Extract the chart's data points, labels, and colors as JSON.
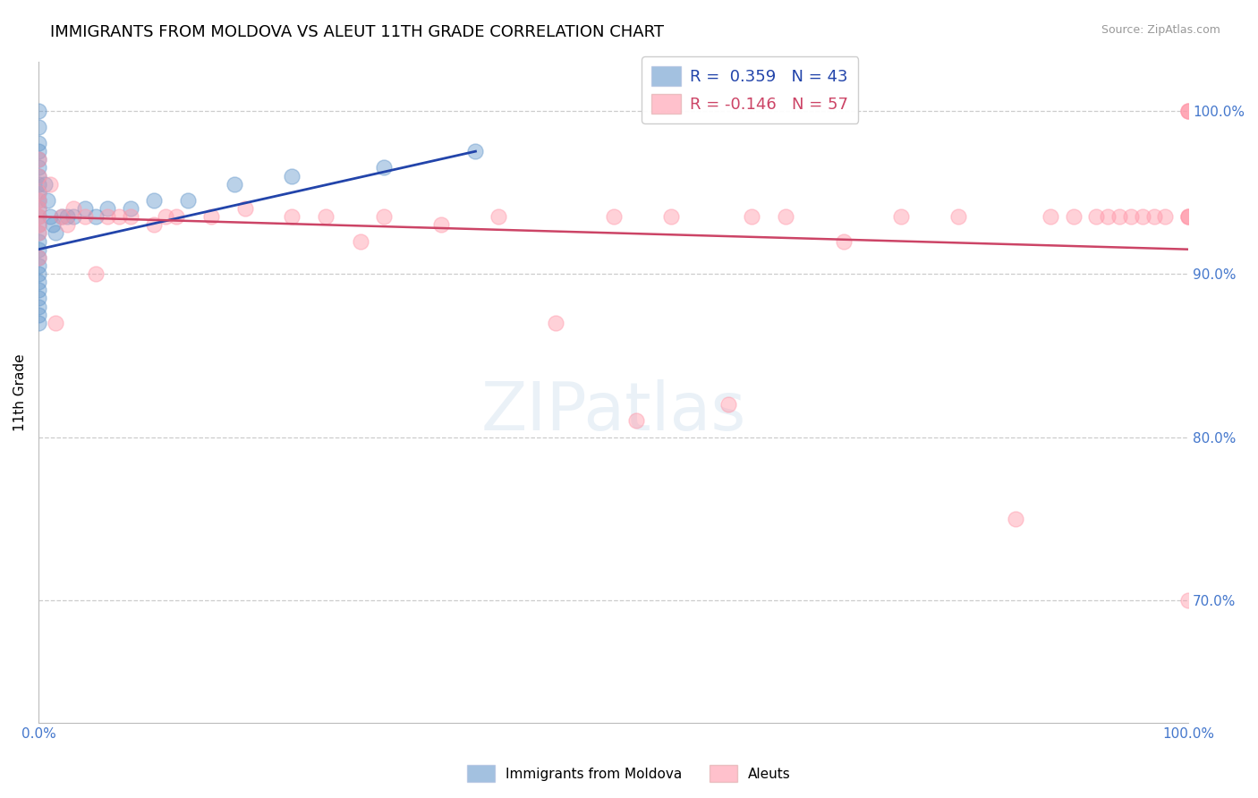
{
  "title": "IMMIGRANTS FROM MOLDOVA VS ALEUT 11TH GRADE CORRELATION CHART",
  "source_text": "Source: ZipAtlas.com",
  "ylabel": "11th Grade",
  "r_blue": 0.359,
  "n_blue": 43,
  "r_pink": -0.146,
  "n_pink": 57,
  "blue_color": "#6699CC",
  "pink_color": "#FF99AA",
  "blue_line_color": "#2244AA",
  "pink_line_color": "#CC4466",
  "legend_blue_label": "Immigrants from Moldova",
  "legend_pink_label": "Aleuts",
  "blue_scatter_x": [
    0.0,
    0.0,
    0.0,
    0.0,
    0.0,
    0.0,
    0.0,
    0.0,
    0.0,
    0.0,
    0.0,
    0.0,
    0.0,
    0.0,
    0.0,
    0.0,
    0.0,
    0.0,
    0.0,
    0.0,
    0.0,
    0.0,
    0.0,
    0.0,
    0.0,
    0.005,
    0.008,
    0.01,
    0.012,
    0.015,
    0.02,
    0.025,
    0.03,
    0.04,
    0.05,
    0.06,
    0.08,
    0.1,
    0.13,
    0.17,
    0.22,
    0.3,
    0.38
  ],
  "blue_scatter_y": [
    1.0,
    0.99,
    0.98,
    0.975,
    0.97,
    0.965,
    0.96,
    0.955,
    0.95,
    0.945,
    0.94,
    0.935,
    0.93,
    0.925,
    0.92,
    0.915,
    0.91,
    0.905,
    0.9,
    0.895,
    0.89,
    0.885,
    0.88,
    0.875,
    0.87,
    0.955,
    0.945,
    0.935,
    0.93,
    0.925,
    0.935,
    0.935,
    0.935,
    0.94,
    0.935,
    0.94,
    0.94,
    0.945,
    0.945,
    0.955,
    0.96,
    0.965,
    0.975
  ],
  "pink_scatter_x": [
    0.0,
    0.0,
    0.0,
    0.0,
    0.0,
    0.0,
    0.0,
    0.0,
    0.0,
    0.01,
    0.015,
    0.02,
    0.025,
    0.03,
    0.04,
    0.05,
    0.06,
    0.07,
    0.08,
    0.1,
    0.11,
    0.12,
    0.15,
    0.18,
    0.22,
    0.25,
    0.28,
    0.3,
    0.35,
    0.4,
    0.45,
    0.5,
    0.52,
    0.55,
    0.6,
    0.62,
    0.65,
    0.7,
    0.75,
    0.8,
    0.85,
    0.88,
    0.9,
    0.92,
    0.93,
    0.94,
    0.95,
    0.96,
    0.97,
    0.98,
    1.0,
    1.0,
    1.0,
    1.0,
    1.0,
    1.0,
    1.0
  ],
  "pink_scatter_y": [
    0.97,
    0.96,
    0.95,
    0.945,
    0.94,
    0.935,
    0.93,
    0.925,
    0.91,
    0.955,
    0.87,
    0.935,
    0.93,
    0.94,
    0.935,
    0.9,
    0.935,
    0.935,
    0.935,
    0.93,
    0.935,
    0.935,
    0.935,
    0.94,
    0.935,
    0.935,
    0.92,
    0.935,
    0.93,
    0.935,
    0.87,
    0.935,
    0.81,
    0.935,
    0.82,
    0.935,
    0.935,
    0.92,
    0.935,
    0.935,
    0.75,
    0.935,
    0.935,
    0.935,
    0.935,
    0.935,
    0.935,
    0.935,
    0.935,
    0.935,
    1.0,
    1.0,
    1.0,
    0.935,
    0.935,
    0.7,
    0.935
  ],
  "xlim": [
    0.0,
    1.0
  ],
  "ylim": [
    0.625,
    1.03
  ],
  "yticks": [
    0.7,
    0.8,
    0.9,
    1.0
  ],
  "ytick_labels": [
    "70.0%",
    "80.0%",
    "90.0%",
    "100.0%"
  ],
  "xticks": [
    0.0,
    1.0
  ],
  "xtick_labels": [
    "0.0%",
    "100.0%"
  ],
  "grid_color": "#CCCCCC",
  "background_color": "#FFFFFF",
  "title_fontsize": 13,
  "axis_label_fontsize": 11,
  "tick_fontsize": 11,
  "tick_color": "#4477CC",
  "marker_size": 150,
  "blue_line_start_x": 0.0,
  "blue_line_start_y": 0.915,
  "blue_line_end_x": 0.38,
  "blue_line_end_y": 0.975,
  "pink_line_start_x": 0.0,
  "pink_line_start_y": 0.935,
  "pink_line_end_x": 1.0,
  "pink_line_end_y": 0.915
}
